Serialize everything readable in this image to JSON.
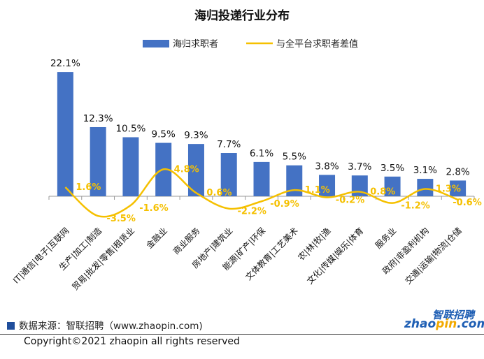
{
  "chart_data": {
    "type": "bar",
    "title": "海归投递行业分布",
    "categories": [
      "IT|通信|电子|互联网",
      "生产|加工|制造",
      "贸易|批发|零售|租赁业",
      "金融业",
      "商业服务",
      "房地产|建筑业",
      "能源|矿产|环保",
      "文体教育|工艺美术",
      "农|林|牧|渔",
      "文化|传媒|娱乐|体育",
      "服务业",
      "政府|非盈利机构",
      "交通|运输|物流|仓储"
    ],
    "series": [
      {
        "name": "海归求职者",
        "type": "bar",
        "color": "#4472c4",
        "values": [
          22.1,
          12.3,
          10.5,
          9.5,
          9.3,
          7.7,
          6.1,
          5.5,
          3.8,
          3.7,
          3.5,
          3.1,
          2.8
        ]
      },
      {
        "name": "与全平台求职者差值",
        "type": "line",
        "color": "#f5c000",
        "values": [
          1.6,
          -3.5,
          -1.6,
          4.8,
          0.6,
          -2.2,
          -0.9,
          1.1,
          -0.2,
          0.8,
          -1.2,
          1.3,
          -0.6
        ]
      }
    ],
    "unit": "%",
    "legend": "top-center",
    "grid": false
  },
  "footer": {
    "source": "数据来源：智联招聘（www.zhaopin.com)",
    "copyright": "Copyright©2021 zhaopin all rights reserved"
  },
  "logo": {
    "cn": "智联招聘",
    "en": "zhaopin.com"
  }
}
